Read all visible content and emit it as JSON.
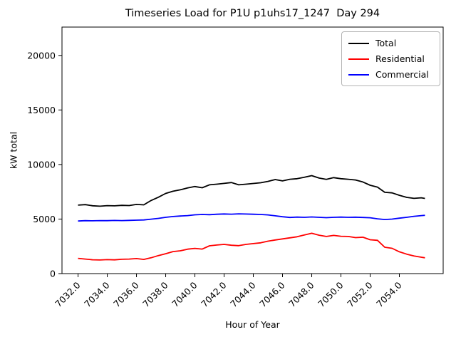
{
  "chart_data": {
    "type": "line",
    "title": "Timeseries Load for P1U p1uhs17_1247  Day 294",
    "xlabel": "Hour of Year",
    "ylabel": "kW total",
    "xlim": [
      7030.9,
      7057.0
    ],
    "ylim": [
      0,
      22600
    ],
    "yticks": [
      0,
      5000,
      10000,
      15000,
      20000
    ],
    "ytick_labels": [
      "0",
      "5000",
      "10000",
      "15000",
      "20000"
    ],
    "xticks": [
      7032,
      7034,
      7036,
      7038,
      7040,
      7042,
      7044,
      7046,
      7048,
      7050,
      7052,
      7054
    ],
    "xtick_labels": [
      "7032.0",
      "7034.0",
      "7036.0",
      "7038.0",
      "7040.0",
      "7042.0",
      "7044.0",
      "7046.0",
      "7048.0",
      "7050.0",
      "7052.0",
      "7054.0"
    ],
    "grid": false,
    "legend_position": "upper right",
    "x": [
      7032.0,
      7032.5,
      7033.0,
      7033.5,
      7034.0,
      7034.5,
      7035.0,
      7035.5,
      7036.0,
      7036.5,
      7037.0,
      7037.5,
      7038.0,
      7038.5,
      7039.0,
      7039.5,
      7040.0,
      7040.5,
      7041.0,
      7041.5,
      7042.0,
      7042.5,
      7043.0,
      7043.5,
      7044.0,
      7044.5,
      7045.0,
      7045.5,
      7046.0,
      7046.5,
      7047.0,
      7047.5,
      7048.0,
      7048.5,
      7049.0,
      7049.5,
      7050.0,
      7050.5,
      7051.0,
      7051.5,
      7052.0,
      7052.5,
      7053.0,
      7053.5,
      7054.0,
      7054.5,
      7055.0,
      7055.5,
      7055.75
    ],
    "series": [
      {
        "name": "Total",
        "color": "#000000",
        "values": [
          6280,
          6320,
          6220,
          6180,
          6230,
          6210,
          6260,
          6240,
          6340,
          6300,
          6700,
          7000,
          7350,
          7550,
          7680,
          7860,
          7980,
          7870,
          8140,
          8200,
          8270,
          8350,
          8140,
          8200,
          8260,
          8330,
          8450,
          8620,
          8500,
          8650,
          8700,
          8830,
          8980,
          8760,
          8640,
          8800,
          8700,
          8650,
          8580,
          8400,
          8100,
          7930,
          7450,
          7400,
          7180,
          6990,
          6900,
          6950,
          6890
        ]
      },
      {
        "name": "Residential",
        "color": "#ff0000",
        "values": [
          1400,
          1330,
          1270,
          1250,
          1280,
          1260,
          1310,
          1330,
          1380,
          1300,
          1450,
          1650,
          1820,
          2020,
          2090,
          2240,
          2310,
          2250,
          2550,
          2620,
          2680,
          2600,
          2560,
          2680,
          2750,
          2820,
          2970,
          3080,
          3180,
          3280,
          3380,
          3550,
          3700,
          3520,
          3400,
          3500,
          3420,
          3400,
          3300,
          3340,
          3100,
          3050,
          2420,
          2320,
          2000,
          1780,
          1620,
          1500,
          1450
        ]
      },
      {
        "name": "Commercial",
        "color": "#0000ff",
        "values": [
          4820,
          4850,
          4840,
          4860,
          4850,
          4870,
          4860,
          4880,
          4900,
          4920,
          4990,
          5060,
          5160,
          5230,
          5280,
          5320,
          5390,
          5420,
          5400,
          5440,
          5470,
          5450,
          5480,
          5460,
          5440,
          5420,
          5380,
          5300,
          5210,
          5150,
          5180,
          5160,
          5190,
          5160,
          5130,
          5160,
          5180,
          5160,
          5170,
          5150,
          5120,
          5020,
          4960,
          5000,
          5080,
          5160,
          5250,
          5320,
          5340
        ]
      }
    ]
  }
}
